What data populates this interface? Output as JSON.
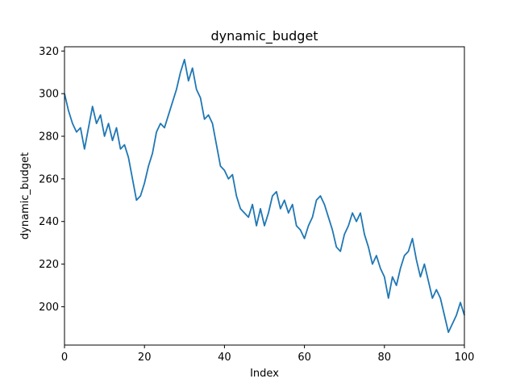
{
  "chart_data": {
    "type": "line",
    "title": "dynamic_budget",
    "xlabel": "Index",
    "ylabel": "dynamic_budget",
    "xlim": [
      0,
      100
    ],
    "ylim": [
      182,
      322
    ],
    "xticks": [
      0,
      20,
      40,
      60,
      80,
      100
    ],
    "yticks": [
      200,
      220,
      240,
      260,
      280,
      300,
      320
    ],
    "grid": false,
    "legend": "none",
    "series": [
      {
        "color": "#1f77b4",
        "x": [
          0,
          1,
          2,
          3,
          4,
          5,
          6,
          7,
          8,
          9,
          10,
          11,
          12,
          13,
          14,
          15,
          16,
          17,
          18,
          19,
          20,
          21,
          22,
          23,
          24,
          25,
          26,
          27,
          28,
          29,
          30,
          31,
          32,
          33,
          34,
          35,
          36,
          37,
          38,
          39,
          40,
          41,
          42,
          43,
          44,
          45,
          46,
          47,
          48,
          49,
          50,
          51,
          52,
          53,
          54,
          55,
          56,
          57,
          58,
          59,
          60,
          61,
          62,
          63,
          64,
          65,
          66,
          67,
          68,
          69,
          70,
          71,
          72,
          73,
          74,
          75,
          76,
          77,
          78,
          79,
          80,
          81,
          82,
          83,
          84,
          85,
          86,
          87,
          88,
          89,
          90,
          91,
          92,
          93,
          94,
          95,
          96,
          97,
          98,
          99,
          100
        ],
        "y": [
          300,
          292,
          286,
          282,
          284,
          274,
          284,
          294,
          286,
          290,
          280,
          286,
          278,
          284,
          274,
          276,
          270,
          260,
          250,
          252,
          258,
          266,
          272,
          282,
          286,
          284,
          290,
          296,
          302,
          310,
          316,
          306,
          312,
          302,
          298,
          288,
          290,
          286,
          276,
          266,
          264,
          260,
          262,
          252,
          246,
          244,
          242,
          248,
          238,
          246,
          238,
          244,
          252,
          254,
          246,
          250,
          244,
          248,
          238,
          236,
          232,
          238,
          242,
          250,
          252,
          248,
          242,
          236,
          228,
          226,
          234,
          238,
          244,
          240,
          244,
          234,
          228,
          220,
          224,
          218,
          214,
          204,
          214,
          210,
          218,
          224,
          226,
          232,
          222,
          214,
          220,
          212,
          204,
          208,
          204,
          196,
          188,
          192,
          196,
          202,
          196
        ]
      }
    ]
  }
}
